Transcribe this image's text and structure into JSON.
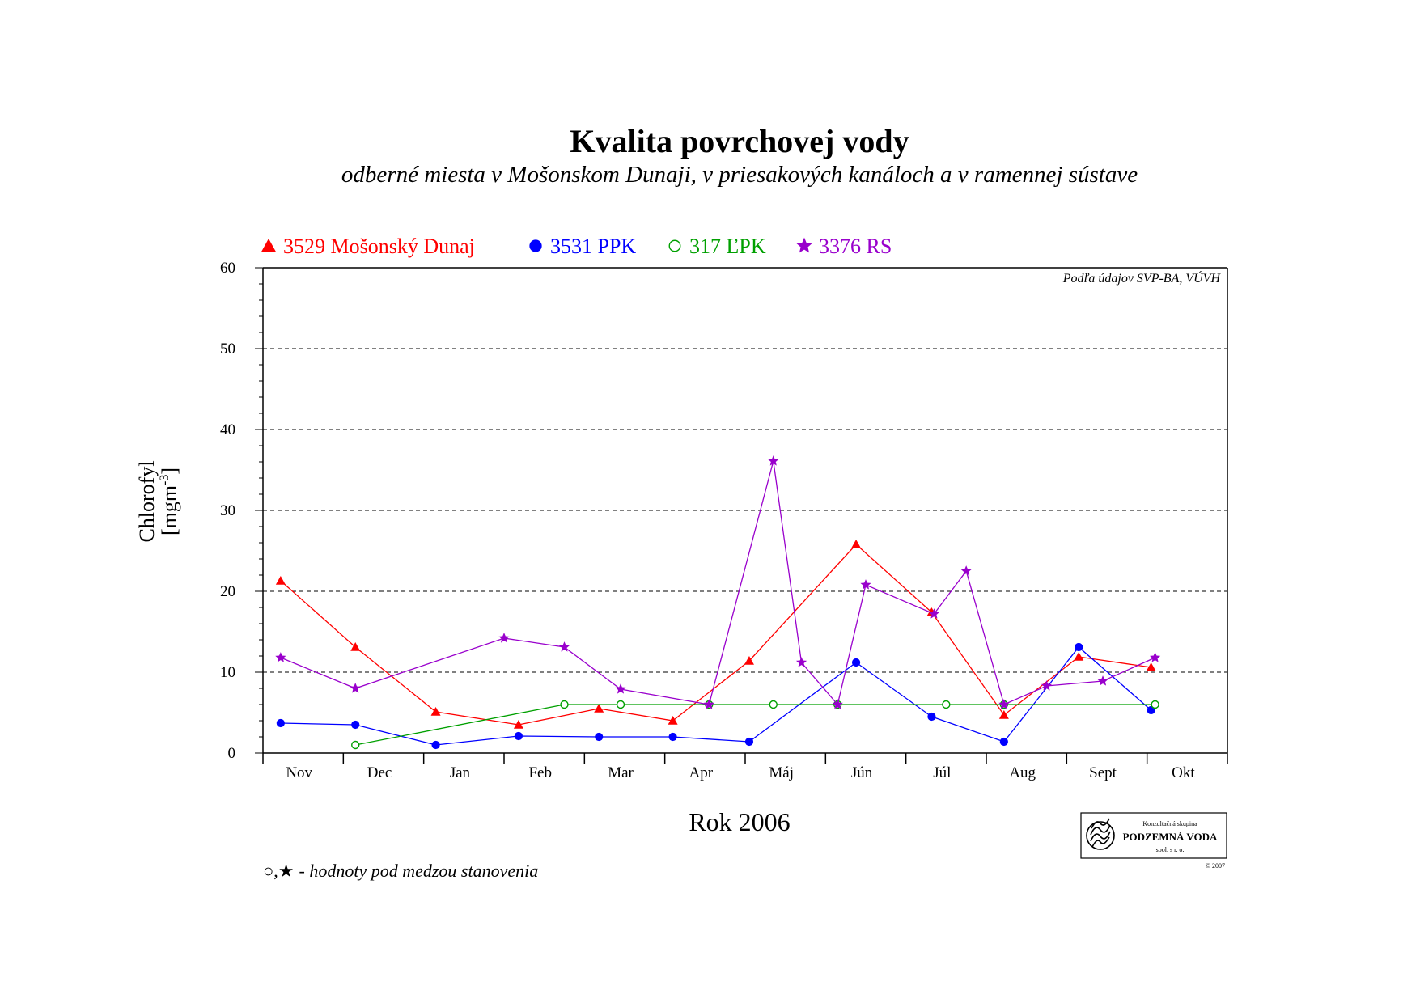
{
  "chart_data": {
    "type": "line",
    "title": "Kvalita povrchovej vody",
    "subtitle": "odberné miesta v Mošonskom Dunaji, v priesakových kanáloch a v ramennej sústave",
    "ylabel_line1": "Chlorofyl",
    "ylabel_line2_prefix": "[mgm",
    "ylabel_line2_sup": "-3",
    "ylabel_line2_suffix": "]",
    "xlabel": "Rok 2006",
    "source_note": "Podľa údajov SVP-BA, VÚVH",
    "footnote_symbols": "○,★",
    "footnote_text": "- hodnoty pod medzou stanovenia",
    "ylim": [
      0,
      60
    ],
    "yticks": [
      "0",
      "10",
      "20",
      "30",
      "40",
      "50",
      "60"
    ],
    "xlim": [
      0,
      12
    ],
    "categories": [
      "Nov",
      "Dec",
      "Jan",
      "Feb",
      "Mar",
      "Apr",
      "Máj",
      "Jún",
      "Júl",
      "Aug",
      "Sept",
      "Okt"
    ],
    "grid": "horizontal dashed",
    "legend_placement": "top",
    "series": [
      {
        "name": "3529 Mošonský Dunaj",
        "color": "#ff0000",
        "marker": "triangle",
        "x": [
          0.22,
          1.15,
          2.15,
          3.18,
          4.18,
          5.1,
          6.05,
          7.38,
          8.32,
          9.22,
          10.15,
          11.05
        ],
        "y": [
          21.3,
          13.1,
          5.1,
          3.5,
          5.5,
          4.0,
          11.4,
          25.8,
          17.4,
          4.7,
          11.9,
          10.6
        ]
      },
      {
        "name": "3531 PPK",
        "color": "#0000ff",
        "marker": "circle",
        "x": [
          0.22,
          1.15,
          2.15,
          3.18,
          4.18,
          5.1,
          6.05,
          7.38,
          8.32,
          9.22,
          10.15,
          11.05
        ],
        "y": [
          3.7,
          3.5,
          1.0,
          2.1,
          2.0,
          2.0,
          1.4,
          11.2,
          4.5,
          1.4,
          13.1,
          5.3
        ]
      },
      {
        "name": "317 ĽPK",
        "color": "#00a000",
        "marker": "open-circle",
        "x": [
          1.15,
          3.75,
          4.45,
          5.55,
          6.35,
          7.15,
          8.5,
          9.22,
          11.1
        ],
        "y": [
          1.0,
          6.0,
          6.0,
          6.0,
          6.0,
          6.0,
          6.0,
          6.0,
          6.0
        ]
      },
      {
        "name": "3376 RS",
        "color": "#9900cc",
        "marker": "star",
        "x": [
          0.22,
          1.15,
          3.0,
          3.75,
          4.45,
          5.55,
          6.35,
          6.7,
          7.15,
          7.5,
          8.35,
          8.75,
          9.22,
          9.75,
          10.45,
          11.1
        ],
        "y": [
          11.8,
          8.0,
          14.2,
          13.1,
          7.9,
          6.0,
          36.1,
          11.2,
          6.0,
          20.8,
          17.2,
          22.5,
          6.0,
          8.3,
          8.9,
          11.8
        ]
      }
    ]
  },
  "logo": {
    "line1": "Konzultačná skupina",
    "line2": "PODZEMNÁ VODA",
    "line3": "spol. s r. o.",
    "copyright": "© 2007"
  }
}
